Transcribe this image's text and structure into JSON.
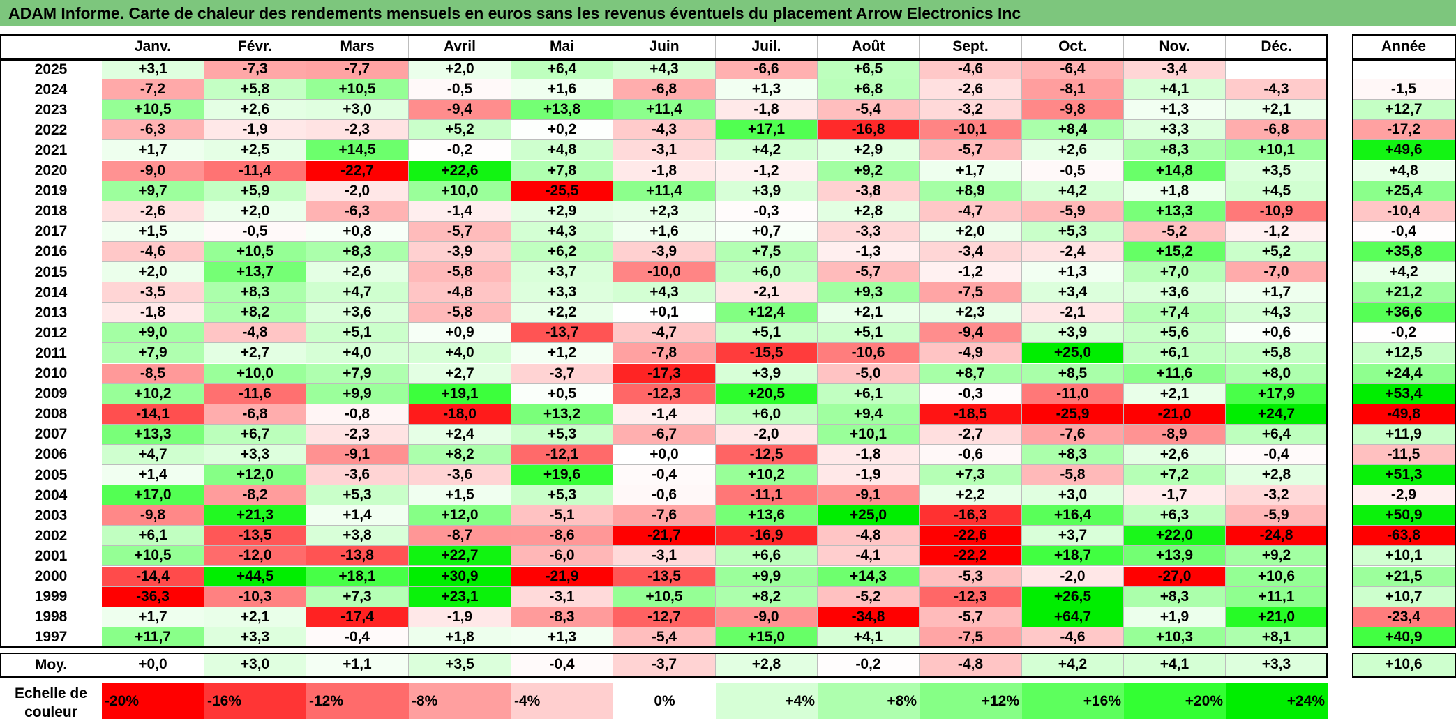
{
  "title": "ADAM Informe. Carte de chaleur des rendements mensuels en euros sans les revenus éventuels du placement Arrow Electronics Inc",
  "chart_data": {
    "type": "heatmap",
    "title": "ADAM Informe. Carte de chaleur des rendements mensuels en euros sans les revenus éventuels du placement Arrow Electronics Inc",
    "columns": [
      "Janv.",
      "Févr.",
      "Mars",
      "Avril",
      "Mai",
      "Juin",
      "Juil.",
      "Août",
      "Sept.",
      "Oct.",
      "Nov.",
      "Déc."
    ],
    "annual_header": "Année",
    "rows": [
      {
        "year": "2025",
        "values": [
          3.1,
          -7.3,
          -7.7,
          2.0,
          6.4,
          4.3,
          -6.6,
          6.5,
          -4.6,
          -6.4,
          -3.4,
          null
        ],
        "annual": null
      },
      {
        "year": "2024",
        "values": [
          -7.2,
          5.8,
          10.5,
          -0.5,
          1.6,
          -6.8,
          1.3,
          6.8,
          -2.6,
          -8.1,
          4.1,
          -4.3
        ],
        "annual": -1.5
      },
      {
        "year": "2023",
        "values": [
          10.5,
          2.6,
          3.0,
          -9.4,
          13.8,
          11.4,
          -1.8,
          -5.4,
          -3.2,
          -9.8,
          1.3,
          2.1
        ],
        "annual": 12.7
      },
      {
        "year": "2022",
        "values": [
          -6.3,
          -1.9,
          -2.3,
          5.2,
          0.2,
          -4.3,
          17.1,
          -16.8,
          -10.1,
          8.4,
          3.3,
          -6.8
        ],
        "annual": -17.2
      },
      {
        "year": "2021",
        "values": [
          1.7,
          2.5,
          14.5,
          -0.2,
          4.8,
          -3.1,
          4.2,
          2.9,
          -5.7,
          2.6,
          8.3,
          10.1
        ],
        "annual": 49.6
      },
      {
        "year": "2020",
        "values": [
          -9.0,
          -11.4,
          -22.7,
          22.6,
          7.8,
          -1.8,
          -1.2,
          9.2,
          1.7,
          -0.5,
          14.8,
          3.5
        ],
        "annual": 4.8
      },
      {
        "year": "2019",
        "values": [
          9.7,
          5.9,
          -2.0,
          10.0,
          -25.5,
          11.4,
          3.9,
          -3.8,
          8.9,
          4.2,
          1.8,
          4.5
        ],
        "annual": 25.4
      },
      {
        "year": "2018",
        "values": [
          -2.6,
          2.0,
          -6.3,
          -1.4,
          2.9,
          2.3,
          -0.3,
          2.8,
          -4.7,
          -5.9,
          13.3,
          -10.9
        ],
        "annual": -10.4
      },
      {
        "year": "2017",
        "values": [
          1.5,
          -0.5,
          0.8,
          -5.7,
          4.3,
          1.6,
          0.7,
          -3.3,
          2.0,
          5.3,
          -5.2,
          -1.2
        ],
        "annual": -0.4
      },
      {
        "year": "2016",
        "values": [
          -4.6,
          10.5,
          8.3,
          -3.9,
          6.2,
          -3.9,
          7.5,
          -1.3,
          -3.4,
          -2.4,
          15.2,
          5.2
        ],
        "annual": 35.8
      },
      {
        "year": "2015",
        "values": [
          2.0,
          13.7,
          2.6,
          -5.8,
          3.7,
          -10.0,
          6.0,
          -5.7,
          -1.2,
          1.3,
          7.0,
          -7.0
        ],
        "annual": 4.2
      },
      {
        "year": "2014",
        "values": [
          -3.5,
          8.3,
          4.7,
          -4.8,
          3.3,
          4.3,
          -2.1,
          9.3,
          -7.5,
          3.4,
          3.6,
          1.7
        ],
        "annual": 21.2
      },
      {
        "year": "2013",
        "values": [
          -1.8,
          8.2,
          3.6,
          -5.8,
          2.2,
          0.1,
          12.4,
          2.1,
          2.3,
          -2.1,
          7.4,
          4.3
        ],
        "annual": 36.6
      },
      {
        "year": "2012",
        "values": [
          9.0,
          -4.8,
          5.1,
          0.9,
          -13.7,
          -4.7,
          5.1,
          5.1,
          -9.4,
          3.9,
          5.6,
          0.6
        ],
        "annual": -0.2
      },
      {
        "year": "2011",
        "values": [
          7.9,
          2.7,
          4.0,
          4.0,
          1.2,
          -7.8,
          -15.5,
          -10.6,
          -4.9,
          25.0,
          6.1,
          5.8
        ],
        "annual": 12.5
      },
      {
        "year": "2010",
        "values": [
          -8.5,
          10.0,
          7.9,
          2.7,
          -3.7,
          -17.3,
          3.9,
          -5.0,
          8.7,
          8.5,
          11.6,
          8.0
        ],
        "annual": 24.4
      },
      {
        "year": "2009",
        "values": [
          10.2,
          -11.6,
          9.9,
          19.1,
          0.5,
          -12.3,
          20.5,
          6.1,
          -0.3,
          -11.0,
          2.1,
          17.9
        ],
        "annual": 53.4
      },
      {
        "year": "2008",
        "values": [
          -14.1,
          -6.8,
          -0.8,
          -18.0,
          13.2,
          -1.4,
          6.0,
          9.4,
          -18.5,
          -25.9,
          -21.0,
          24.7
        ],
        "annual": -49.8
      },
      {
        "year": "2007",
        "values": [
          13.3,
          6.7,
          -2.3,
          2.4,
          5.3,
          -6.7,
          -2.0,
          10.1,
          -2.7,
          -7.6,
          -8.9,
          6.4
        ],
        "annual": 11.9
      },
      {
        "year": "2006",
        "values": [
          4.7,
          3.3,
          -9.1,
          8.2,
          -12.1,
          0.0,
          -12.5,
          -1.8,
          -0.6,
          8.3,
          2.6,
          -0.4
        ],
        "annual": -11.5
      },
      {
        "year": "2005",
        "values": [
          1.4,
          12.0,
          -3.6,
          -3.6,
          19.6,
          -0.4,
          10.2,
          -1.9,
          7.3,
          -5.8,
          7.2,
          2.8
        ],
        "annual": 51.3
      },
      {
        "year": "2004",
        "values": [
          17.0,
          -8.2,
          5.3,
          1.5,
          5.3,
          -0.6,
          -11.1,
          -9.1,
          2.2,
          3.0,
          -1.7,
          -3.2
        ],
        "annual": -2.9
      },
      {
        "year": "2003",
        "values": [
          -9.8,
          21.3,
          1.4,
          12.0,
          -5.1,
          -7.6,
          13.6,
          25.0,
          -16.3,
          16.4,
          6.3,
          -5.9
        ],
        "annual": 50.9
      },
      {
        "year": "2002",
        "values": [
          6.1,
          -13.5,
          3.8,
          -8.7,
          -8.6,
          -21.7,
          -16.9,
          -4.8,
          -22.6,
          3.7,
          22.0,
          -24.8
        ],
        "annual": -63.8
      },
      {
        "year": "2001",
        "values": [
          10.5,
          -12.0,
          -13.8,
          22.7,
          -6.0,
          -3.1,
          6.6,
          -4.1,
          -22.2,
          18.7,
          13.9,
          9.2
        ],
        "annual": 10.1
      },
      {
        "year": "2000",
        "values": [
          -14.4,
          44.5,
          18.1,
          30.9,
          -21.9,
          -13.5,
          9.9,
          14.3,
          -5.3,
          -2.0,
          -27.0,
          10.6
        ],
        "annual": 21.5
      },
      {
        "year": "1999",
        "values": [
          -36.3,
          -10.3,
          7.3,
          23.1,
          -3.1,
          10.5,
          8.2,
          -5.2,
          -12.3,
          26.5,
          8.3,
          11.1
        ],
        "annual": 10.7
      },
      {
        "year": "1998",
        "values": [
          1.7,
          2.1,
          -17.4,
          -1.9,
          -8.3,
          -12.7,
          -9.0,
          -34.8,
          -5.7,
          64.7,
          1.9,
          21.0
        ],
        "annual": -23.4
      },
      {
        "year": "1997",
        "values": [
          11.7,
          3.3,
          -0.4,
          1.8,
          1.3,
          -5.4,
          15.0,
          4.1,
          -7.5,
          -4.6,
          10.3,
          8.1
        ],
        "annual": 40.9
      }
    ],
    "average": {
      "label": "Moy.",
      "values": [
        0.0,
        3.0,
        1.1,
        3.5,
        -0.4,
        -3.7,
        2.8,
        -0.2,
        -4.8,
        4.2,
        4.1,
        3.3
      ],
      "annual": 10.6
    },
    "scale": {
      "label": "Echelle de\ncouleur",
      "stops": [
        {
          "label": "-20%",
          "value": -20,
          "color": "#ff0000"
        },
        {
          "label": "-16%",
          "value": -16,
          "color": "#ff3535"
        },
        {
          "label": "-12%",
          "value": -12,
          "color": "#ff6b6b"
        },
        {
          "label": "-8%",
          "value": -8,
          "color": "#ff9f9f"
        },
        {
          "label": "-4%",
          "value": -4,
          "color": "#ffcfcf"
        },
        {
          "label": "0%",
          "value": 0,
          "color": "#ffffff"
        },
        {
          "label": "+4%",
          "value": 4,
          "color": "#d6ffd6"
        },
        {
          "label": "+8%",
          "value": 8,
          "color": "#aeffae"
        },
        {
          "label": "+12%",
          "value": 12,
          "color": "#86ff86"
        },
        {
          "label": "+16%",
          "value": 16,
          "color": "#5dff5d"
        },
        {
          "label": "+20%",
          "value": 20,
          "color": "#33ff33"
        },
        {
          "label": "+24%",
          "value": 24,
          "color": "#00ee00"
        }
      ]
    }
  }
}
